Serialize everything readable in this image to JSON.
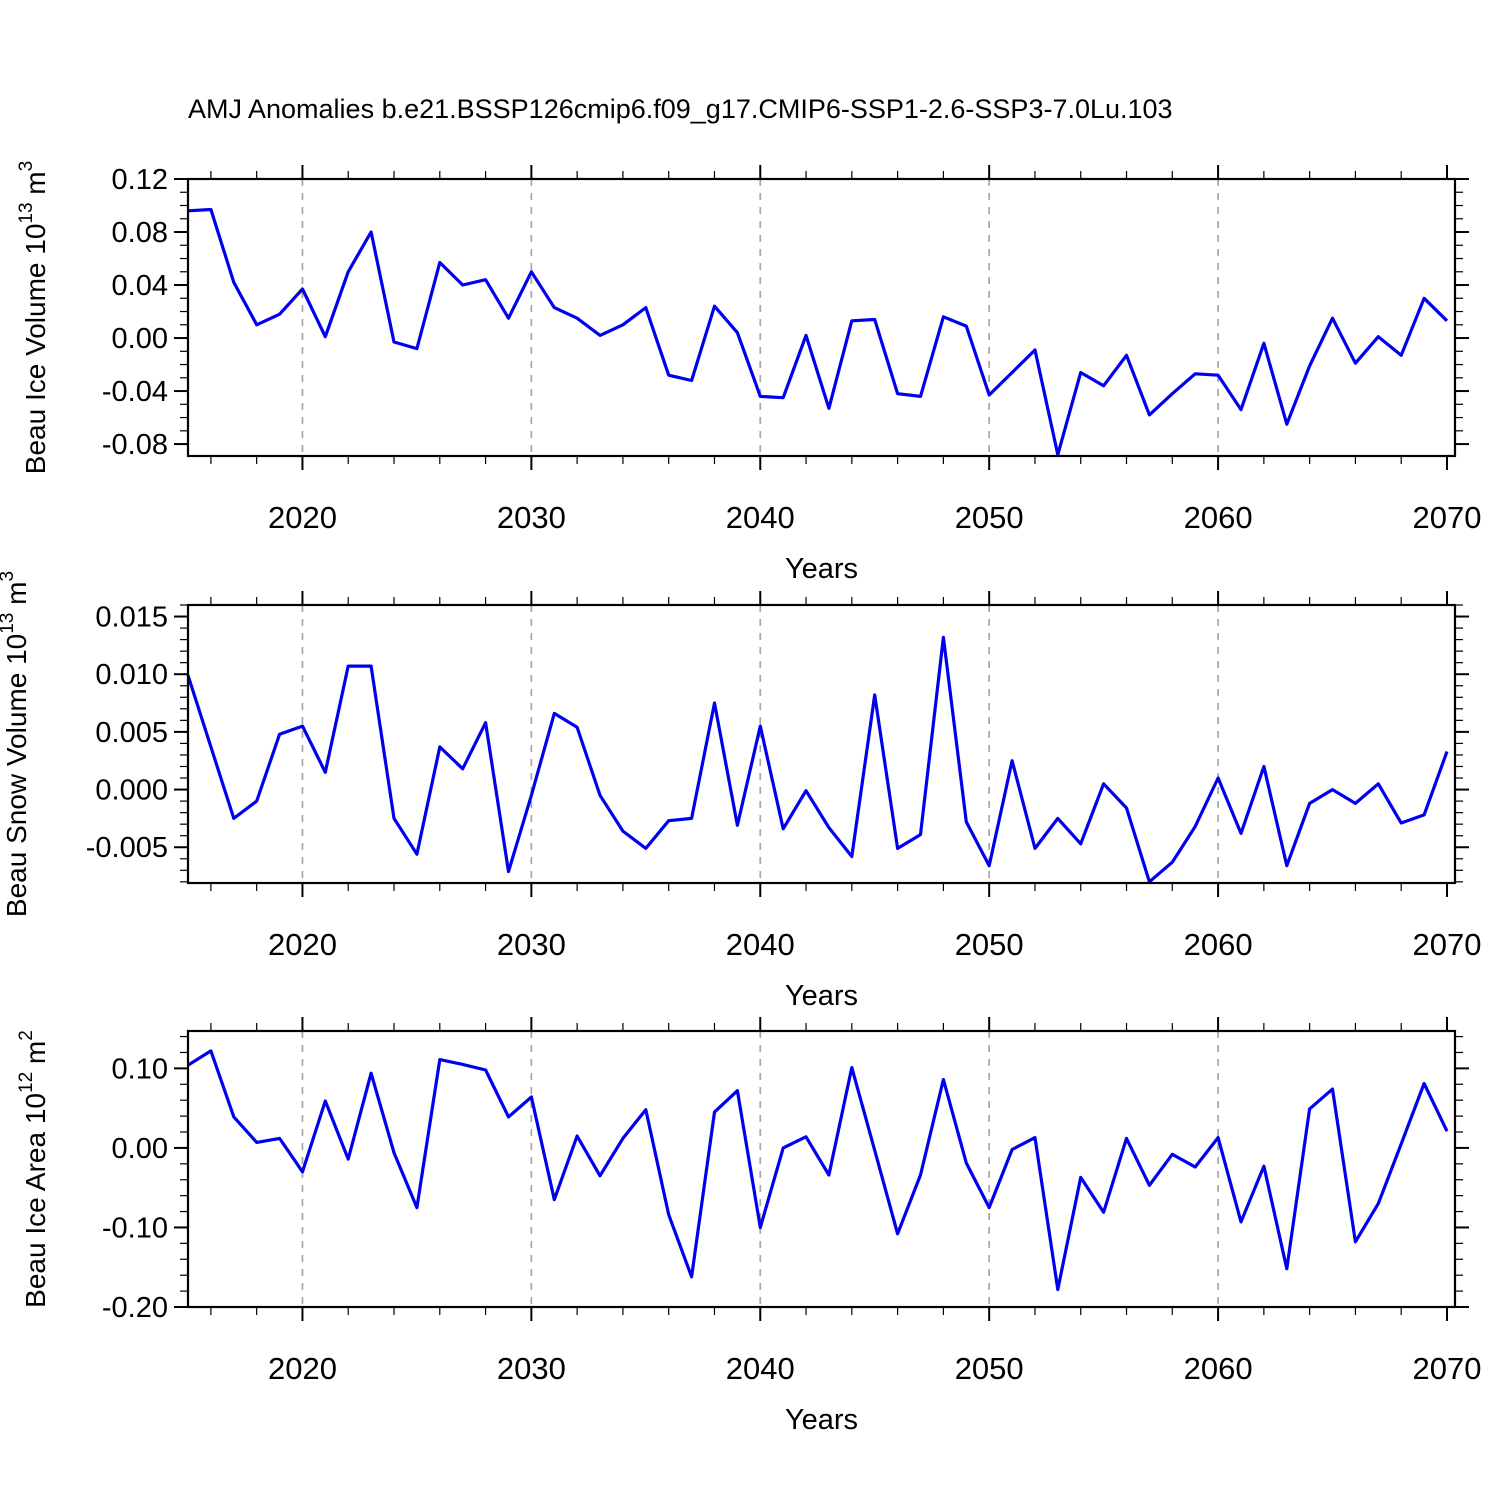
{
  "title": "AMJ Anomalies b.e21.BSSP126cmip6.f09_g17.CMIP6-SSP1-2.6-SSP3-7.0Lu.103",
  "colors": {
    "line": "#0000ee",
    "axis": "#000000",
    "grid": "#a6a6a6",
    "background": "#ffffff"
  },
  "x_axis": {
    "label": "Years",
    "xlim": [
      2015,
      2070.35
    ],
    "ticks": [
      2020,
      2030,
      2040,
      2050,
      2060,
      2070
    ],
    "tick_labels": [
      "2020",
      "2030",
      "2040",
      "2050",
      "2060",
      "2070"
    ],
    "minor_step": 2,
    "gridlines": [
      2020,
      2030,
      2040,
      2050,
      2060
    ]
  },
  "chart_data": [
    {
      "type": "line",
      "name": "beau-ice-volume",
      "title": "",
      "xlabel": "Years",
      "ylabel": {
        "text": "Beau Ice Volume 10",
        "exp": "13",
        "unit": "m",
        "unit_exp": "3"
      },
      "ylim": [
        -0.089,
        0.12
      ],
      "yticks": [
        -0.08,
        -0.04,
        0.0,
        0.04,
        0.08,
        0.12
      ],
      "ytick_labels": [
        "-0.08",
        "-0.04",
        "0.00",
        "0.04",
        "0.08",
        "0.12"
      ],
      "y_minor_step": 0.01,
      "x": [
        2015,
        2016,
        2017,
        2018,
        2019,
        2020,
        2021,
        2022,
        2023,
        2024,
        2025,
        2026,
        2027,
        2028,
        2029,
        2030,
        2031,
        2032,
        2033,
        2034,
        2035,
        2036,
        2037,
        2038,
        2039,
        2040,
        2041,
        2042,
        2043,
        2044,
        2045,
        2046,
        2047,
        2048,
        2049,
        2050,
        2051,
        2052,
        2053,
        2054,
        2055,
        2056,
        2057,
        2058,
        2059,
        2060,
        2061,
        2062,
        2063,
        2064,
        2065,
        2066,
        2067,
        2068,
        2069,
        2070
      ],
      "values": [
        0.096,
        0.097,
        0.042,
        0.01,
        0.018,
        0.037,
        0.001,
        0.05,
        0.08,
        -0.003,
        -0.008,
        0.057,
        0.04,
        0.044,
        0.015,
        0.05,
        0.023,
        0.015,
        0.002,
        0.01,
        0.023,
        -0.028,
        -0.032,
        0.024,
        0.004,
        -0.044,
        -0.045,
        0.002,
        -0.053,
        0.013,
        0.014,
        -0.042,
        -0.044,
        0.016,
        0.009,
        -0.043,
        -0.026,
        -0.009,
        -0.088,
        -0.026,
        -0.036,
        -0.013,
        -0.058,
        -0.042,
        -0.027,
        -0.028,
        -0.054,
        -0.004,
        -0.065,
        -0.021,
        0.015,
        -0.019,
        0.001,
        -0.013,
        0.03,
        0.013
      ]
    },
    {
      "type": "line",
      "name": "beau-snow-volume",
      "title": "",
      "xlabel": "Years",
      "ylabel": {
        "text": "Beau Snow Volume 10",
        "exp": "13",
        "unit": "m",
        "unit_exp": "3"
      },
      "ylim": [
        -0.0081,
        0.016
      ],
      "yticks": [
        -0.005,
        0.0,
        0.005,
        0.01,
        0.015
      ],
      "ytick_labels": [
        "-0.005",
        "0.000",
        "0.005",
        "0.010",
        "0.015"
      ],
      "y_minor_step": 0.001,
      "x": [
        2015,
        2016,
        2017,
        2018,
        2019,
        2020,
        2021,
        2022,
        2023,
        2024,
        2025,
        2026,
        2027,
        2028,
        2029,
        2030,
        2031,
        2032,
        2033,
        2034,
        2035,
        2036,
        2037,
        2038,
        2039,
        2040,
        2041,
        2042,
        2043,
        2044,
        2045,
        2046,
        2047,
        2048,
        2049,
        2050,
        2051,
        2052,
        2053,
        2054,
        2055,
        2056,
        2057,
        2058,
        2059,
        2060,
        2061,
        2062,
        2063,
        2064,
        2065,
        2066,
        2067,
        2068,
        2069,
        2070
      ],
      "values": [
        0.0099,
        0.0037,
        -0.0025,
        -0.001,
        0.0048,
        0.0055,
        0.0015,
        0.0107,
        0.0107,
        -0.0025,
        -0.0056,
        0.0037,
        0.0018,
        0.0058,
        -0.0071,
        -0.0005,
        0.0066,
        0.0054,
        -0.0005,
        -0.0036,
        -0.0051,
        -0.0027,
        -0.0025,
        0.0075,
        -0.0031,
        0.0055,
        -0.0034,
        -0.0001,
        -0.0033,
        -0.0058,
        0.0082,
        -0.0051,
        -0.0039,
        0.0132,
        -0.0028,
        -0.0066,
        0.0025,
        -0.0051,
        -0.0025,
        -0.0047,
        0.0005,
        -0.0016,
        -0.008,
        -0.0063,
        -0.0032,
        0.001,
        -0.0038,
        0.002,
        -0.0066,
        -0.0012,
        0.0,
        -0.0012,
        0.0005,
        -0.0029,
        -0.0022,
        0.0033
      ]
    },
    {
      "type": "line",
      "name": "beau-ice-area",
      "title": "",
      "xlabel": "Years",
      "ylabel": {
        "text": "Beau Ice Area 10",
        "exp": "12",
        "unit": "m",
        "unit_exp": "2"
      },
      "ylim": [
        -0.2,
        0.147
      ],
      "yticks": [
        -0.2,
        -0.1,
        0.0,
        0.1
      ],
      "ytick_labels": [
        "-0.20",
        "-0.10",
        "0.00",
        "0.10"
      ],
      "y_minor_step": 0.02,
      "x": [
        2015,
        2016,
        2017,
        2018,
        2019,
        2020,
        2021,
        2022,
        2023,
        2024,
        2025,
        2026,
        2027,
        2028,
        2029,
        2030,
        2031,
        2032,
        2033,
        2034,
        2035,
        2036,
        2037,
        2038,
        2039,
        2040,
        2041,
        2042,
        2043,
        2044,
        2045,
        2046,
        2047,
        2048,
        2049,
        2050,
        2051,
        2052,
        2053,
        2054,
        2055,
        2056,
        2057,
        2058,
        2059,
        2060,
        2061,
        2062,
        2063,
        2064,
        2065,
        2066,
        2067,
        2068,
        2069,
        2070
      ],
      "values": [
        0.104,
        0.122,
        0.039,
        0.007,
        0.012,
        -0.03,
        0.059,
        -0.014,
        0.094,
        -0.006,
        -0.075,
        0.111,
        0.105,
        0.098,
        0.039,
        0.064,
        -0.065,
        0.015,
        -0.035,
        0.012,
        0.048,
        -0.084,
        -0.162,
        0.045,
        0.072,
        -0.1,
        0.0,
        0.014,
        -0.034,
        0.101,
        -0.003,
        -0.108,
        -0.034,
        0.086,
        -0.019,
        -0.075,
        -0.002,
        0.013,
        -0.178,
        -0.037,
        -0.081,
        0.012,
        -0.047,
        -0.008,
        -0.024,
        0.013,
        -0.093,
        -0.023,
        -0.152,
        0.049,
        0.074,
        -0.118,
        -0.07,
        0.005,
        0.081,
        0.021
      ]
    }
  ]
}
